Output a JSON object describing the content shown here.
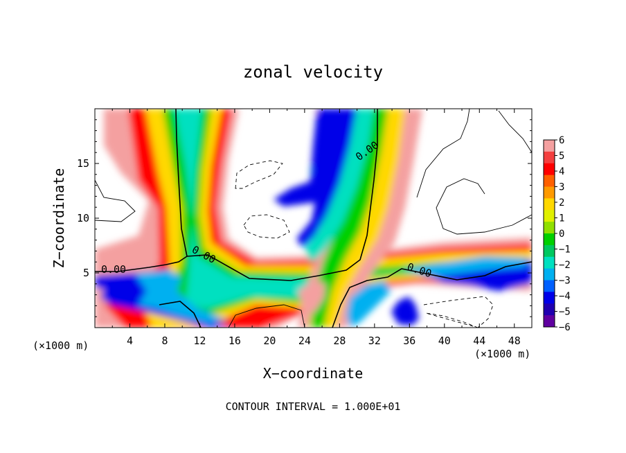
{
  "chart_data": {
    "type": "heatmap",
    "title": "zonal velocity",
    "xlabel": "X−coordinate",
    "ylabel": "Z−coordinate",
    "x_unit_left": "(×1000 m)",
    "x_unit_right": "(×1000 m)",
    "xlim": [
      0,
      50
    ],
    "ylim": [
      0,
      20
    ],
    "x_ticks": [
      4,
      8,
      12,
      16,
      20,
      24,
      28,
      32,
      36,
      40,
      44,
      48
    ],
    "y_ticks": [
      5,
      10,
      15
    ],
    "colorbar": {
      "range": [
        -6,
        6
      ],
      "ticks": [
        6,
        5,
        4,
        3,
        2,
        1,
        0,
        -1,
        -2,
        -3,
        -4,
        -5,
        -6
      ],
      "tick_labels": [
        "6",
        "5",
        "4",
        "3",
        "2",
        "1",
        "0",
        "−1",
        "−2",
        "−3",
        "−4",
        "−5",
        "−6"
      ],
      "colors": [
        "#f4a0a0",
        "#f44040",
        "#ff0000",
        "#ff6000",
        "#ff9a00",
        "#ffd800",
        "#e0f000",
        "#90e000",
        "#00d000",
        "#00c860",
        "#00e0c0",
        "#00b0f0",
        "#0060ff",
        "#0000e8",
        "#2000b0",
        "#6000a0"
      ]
    },
    "contour_labels": [
      "0.00",
      "0.00",
      "0.00",
      "0.00"
    ],
    "contour_interval_label": "CONTOUR INTERVAL = 1.000E+01"
  }
}
